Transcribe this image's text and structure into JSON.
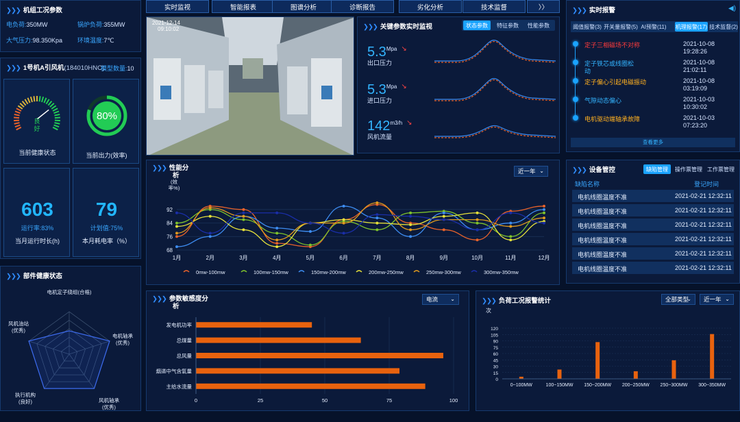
{
  "unit": {
    "title": "机组工况参数",
    "load_label": "电负荷:",
    "load": "350MW",
    "boiler_label": "锅炉负荷:",
    "boiler": "355MW",
    "pressure_label": "大气压力:",
    "pressure": "98.350Kpa",
    "temp_label": "环境温度:",
    "temp": "7℃"
  },
  "fan": {
    "title": "1号机A引风机",
    "code": "(184010HNC)",
    "model_label": "模型数量:",
    "model_count": "10",
    "health_text": "良\n好",
    "health_line1": "良",
    "health_line2": "好",
    "health_caption": "当前健康状态",
    "output_value": "80%",
    "output_fraction": 0.8,
    "output_caption": "当前出力(效率)",
    "run_value": "603",
    "run_rate_label": "运行率:",
    "run_rate": "83%",
    "run_caption": "当月运行时长(h)",
    "plan_value": "79",
    "plan_rate_label": "计划值:",
    "plan_rate": "75%",
    "plan_caption": "本月耗电率（%）"
  },
  "nav": {
    "items": [
      "实时监视",
      "智能报表",
      "图谱分析",
      "诊断报告",
      "劣化分析",
      "技术监督",
      "〉〉"
    ]
  },
  "camera": {
    "date": "2021-12-14",
    "time": "09:10:02"
  },
  "key_params": {
    "title": "关键参数实时监视",
    "tabs": [
      "状态参数",
      "特征参数",
      "性能参数"
    ],
    "active_tab": 0,
    "items": [
      {
        "value": "5.3",
        "unit": "Mpa",
        "label": "出口压力"
      },
      {
        "value": "5.3",
        "unit": "Mpa",
        "label": "进口压力"
      },
      {
        "value": "142",
        "unit": "m3/h",
        "label": "风机流量"
      }
    ]
  },
  "alarm": {
    "title": "实时报警",
    "tabs": [
      "阈值报警(3)",
      "开关量报警(5)",
      "AI预警(11)",
      "机理报警(17)",
      "技术监督(2)"
    ],
    "active_tab": 3,
    "items": [
      {
        "text": "定子三相磁场不对称",
        "date": "2021-10-08",
        "time": "19:28:26",
        "color": "#ff3b3b"
      },
      {
        "text": "定子铁芯或线圈松",
        "text2": "动",
        "date": "2021-10-08",
        "time": "21:02:11",
        "color": "#33b4ff"
      },
      {
        "text": "定子偏心引起电磁振动",
        "date": "2021-10-08",
        "time": "03:19:09",
        "color": "#ffb020"
      },
      {
        "text": "气隙动态偏心",
        "date": "2021-10-03",
        "time": "10:30:02",
        "color": "#33b4ff"
      },
      {
        "text": "电机驱动端轴承故障",
        "date": "2021-10-03",
        "time": "07:23:20",
        "color": "#ffb020"
      }
    ],
    "more": "查看更多"
  },
  "performance": {
    "title": "性能分",
    "title2": "析",
    "range": "近一年"
  },
  "equipment": {
    "title": "设备管控",
    "tabs": [
      "缺陷管理",
      "操作票管理",
      "工作票管理"
    ],
    "active_tab": 0,
    "col1": "缺陷名称",
    "col2": "登记时间",
    "rows": [
      {
        "name": "电机线圈温度不准",
        "time": "2021-02-21 12:32:11"
      },
      {
        "name": "电机线圈温度不准",
        "time": "2021-02-21 12:32:11"
      },
      {
        "name": "电机线圈温度不准",
        "time": "2021-02-21 12:32:11"
      },
      {
        "name": "电机线圈温度不准",
        "time": "2021-02-21 12:32:11"
      },
      {
        "name": "电机线圈温度不准",
        "time": "2021-02-21 12:32:11"
      },
      {
        "name": "电机线圈温度不准",
        "time": "2021-02-21 12:32:11"
      }
    ]
  },
  "components": {
    "title": "部件健康状态"
  },
  "sensitivity": {
    "title": "参数敏感度分",
    "title2": "析",
    "select": "电流"
  },
  "load_alarm": {
    "title": "负荷工况报警统计",
    "select1": "全部类型",
    "select2": "近一年"
  },
  "colors": {
    "accent": "#1aa3ff",
    "bar_orange": "#e8620e",
    "gauge_green": "#22cc55"
  },
  "chart_data": [
    {
      "type": "line",
      "title": "",
      "ylabel": "(效\n率%)",
      "ylabel_line1": "(效",
      "ylabel_line2": "率%)",
      "categories": [
        "1月",
        "2月",
        "3月",
        "4月",
        "5月",
        "6月",
        "7月",
        "8月",
        "9月",
        "10月",
        "11月",
        "12月"
      ],
      "ylim": [
        68,
        96
      ],
      "yticks": [
        68,
        76,
        84,
        92
      ],
      "series": [
        {
          "name": "0mw-100mw",
          "color": "#e8622a",
          "values": [
            76,
            94,
            92,
            72,
            70,
            86,
            95,
            84,
            80,
            74,
            91,
            94
          ]
        },
        {
          "name": "100mw-150mw",
          "color": "#7ec22c",
          "values": [
            84,
            92,
            86,
            78,
            71,
            85,
            80,
            90,
            91,
            84,
            76,
            90
          ]
        },
        {
          "name": "150mw-200mw",
          "color": "#3d8cf0",
          "values": [
            70,
            76,
            88,
            81,
            79,
            94,
            87,
            76,
            90,
            80,
            84,
            92
          ]
        },
        {
          "name": "200mw-250mw",
          "color": "#e5e03a",
          "values": [
            82,
            88,
            80,
            70,
            84,
            86,
            84,
            83,
            88,
            90,
            74,
            85
          ]
        },
        {
          "name": "250mw-300mw",
          "color": "#e09a1e",
          "values": [
            78,
            93,
            88,
            74,
            84,
            84,
            96,
            80,
            86,
            86,
            82,
            87
          ]
        },
        {
          "name": "300mw-350mw",
          "color": "#1a2ea8",
          "values": [
            90,
            78,
            90,
            90,
            84,
            78,
            89,
            88,
            86,
            80,
            90,
            84
          ]
        }
      ],
      "legend": "bottom"
    },
    {
      "type": "radar",
      "axes": [
        "电机定子绕组(合格)",
        "电机轴承\n(优秀)",
        "风机轴承\n(优秀)",
        "执行机构\n(良好)",
        "风机油站\n(优秀)"
      ],
      "axes_lines": [
        [
          "电机定子绕组(合格)"
        ],
        [
          "电机轴承",
          "(优秀)"
        ],
        [
          "风机轴承",
          "(优秀)"
        ],
        [
          "执行机构",
          "(良好)"
        ],
        [
          "风机油站",
          "(优秀)"
        ]
      ],
      "values": [
        0.55,
        1,
        1,
        1,
        1
      ],
      "max": 1
    },
    {
      "type": "bar",
      "orientation": "horizontal",
      "categories": [
        "发电机功率",
        "总煤量",
        "总风量",
        "烟道中气含氧量",
        "主给水流量"
      ],
      "values": [
        45,
        64,
        96,
        79,
        89
      ],
      "xlim": [
        0,
        100
      ],
      "xticks": [
        0,
        25,
        50,
        75,
        100
      ]
    },
    {
      "type": "bar",
      "ylabel": "次",
      "categories": [
        "0~100MW",
        "100~150MW",
        "150~200MW",
        "200~250MW",
        "250~300MW",
        "300~350MW"
      ],
      "values": [
        5,
        22,
        87,
        18,
        44,
        106
      ],
      "ylim": [
        0,
        120
      ],
      "yticks": [
        0,
        15,
        30,
        45,
        60,
        75,
        90,
        105,
        120
      ]
    }
  ]
}
